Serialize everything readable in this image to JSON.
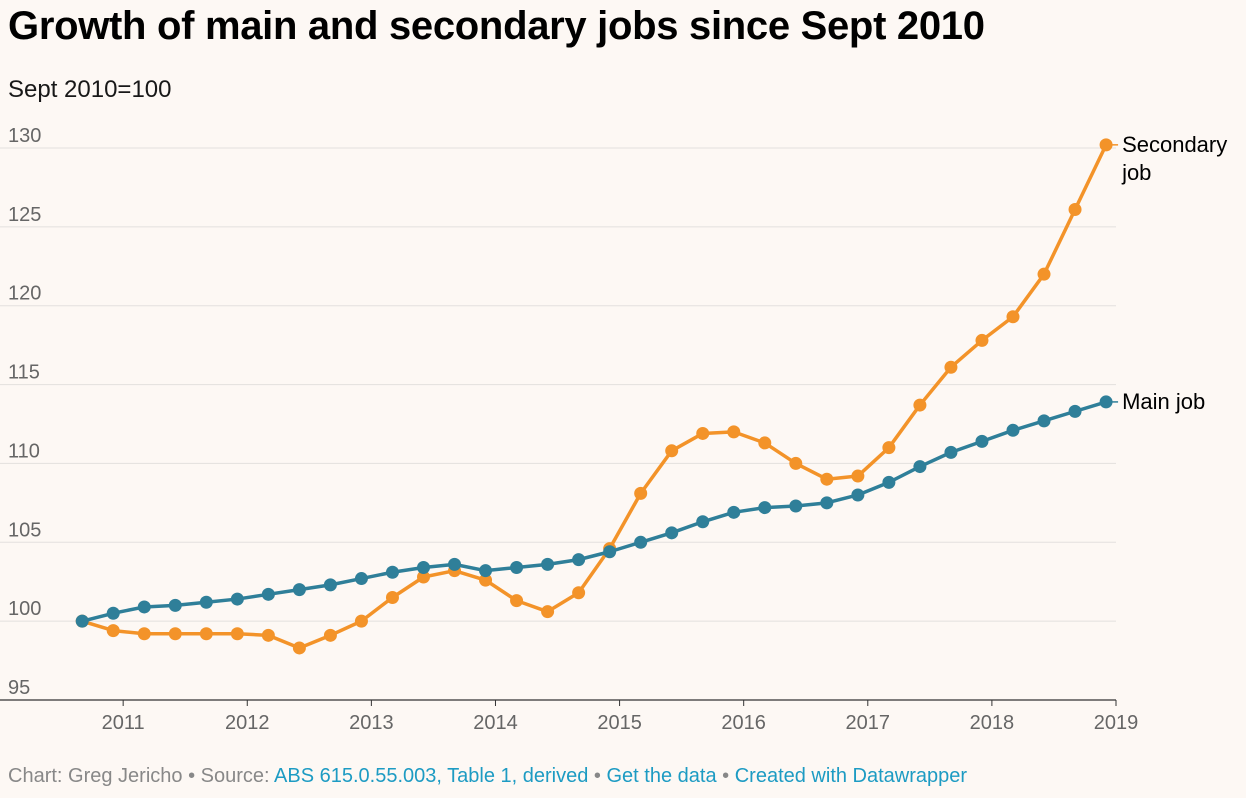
{
  "colors": {
    "background": "#fdf8f4",
    "gridline": "#e3e0de",
    "tick_text": "#666666",
    "main_job": "#2f7f99",
    "secondary_job": "#f39329",
    "link": "#1d9bc3",
    "muted": "#888888"
  },
  "header": {
    "title": "Growth of main and secondary jobs since Sept 2010",
    "subtitle": "Sept 2010=100"
  },
  "footer": {
    "chart_by": "Chart: Greg Jericho",
    "source_prefix": "Source:",
    "source_link": "ABS 615.0.55.003, Table 1, derived",
    "get_data": "Get the data",
    "created_with": "Created with Datawrapper",
    "separator": "•"
  },
  "chart_data": {
    "type": "line",
    "title": "Growth of main and secondary jobs since Sept 2010",
    "subtitle": "Sept 2010=100",
    "xlabel": "",
    "ylabel": "",
    "ylim": [
      95,
      130
    ],
    "xlim": [
      2010.62,
      2019.0
    ],
    "yticks": [
      95,
      100,
      105,
      110,
      115,
      120,
      125,
      130
    ],
    "xticks": [
      2011,
      2012,
      2013,
      2014,
      2015,
      2016,
      2017,
      2018,
      2019
    ],
    "grid": true,
    "x": [
      2010.67,
      2010.92,
      2011.17,
      2011.42,
      2011.67,
      2011.92,
      2012.17,
      2012.42,
      2012.67,
      2012.92,
      2013.17,
      2013.42,
      2013.67,
      2013.92,
      2014.17,
      2014.42,
      2014.67,
      2014.92,
      2015.17,
      2015.42,
      2015.67,
      2015.92,
      2016.17,
      2016.42,
      2016.67,
      2016.92,
      2017.17,
      2017.42,
      2017.67,
      2017.92,
      2018.17,
      2018.42,
      2018.67,
      2018.92
    ],
    "series": [
      {
        "name": "Secondary job",
        "label": [
          "Secondary",
          "job"
        ],
        "color": "#f39329",
        "values": [
          100.0,
          99.4,
          99.2,
          99.2,
          99.2,
          99.2,
          99.1,
          98.3,
          99.1,
          100.0,
          101.5,
          102.8,
          103.2,
          102.6,
          101.3,
          100.6,
          101.8,
          104.6,
          108.1,
          110.8,
          111.9,
          112.0,
          111.3,
          110.0,
          109.0,
          109.2,
          111.0,
          113.7,
          116.1,
          117.8,
          119.3,
          122.0,
          126.1,
          130.2
        ]
      },
      {
        "name": "Main job",
        "label": [
          "Main job"
        ],
        "color": "#2f7f99",
        "values": [
          100.0,
          100.5,
          100.9,
          101.0,
          101.2,
          101.4,
          101.7,
          102.0,
          102.3,
          102.7,
          103.1,
          103.4,
          103.6,
          103.2,
          103.4,
          103.6,
          103.9,
          104.4,
          105.0,
          105.6,
          106.3,
          106.9,
          107.2,
          107.3,
          107.5,
          108.0,
          108.8,
          109.8,
          110.7,
          111.4,
          112.1,
          112.7,
          113.3,
          113.9
        ]
      }
    ]
  }
}
